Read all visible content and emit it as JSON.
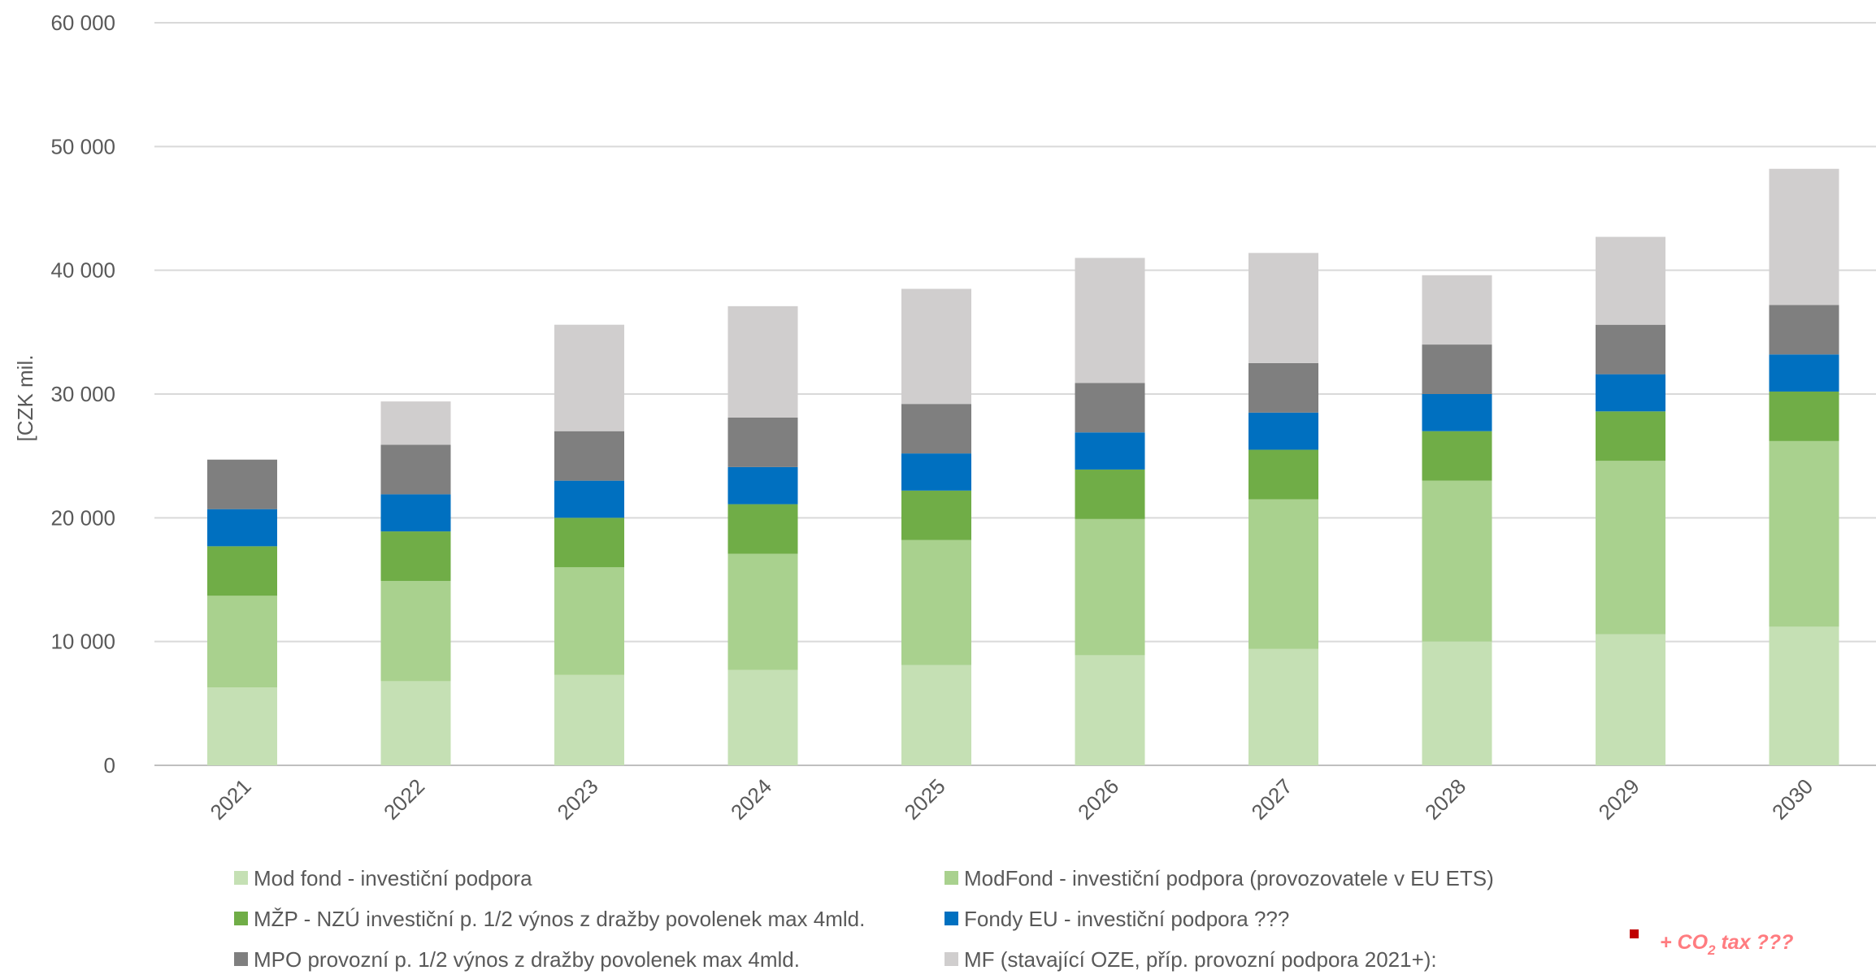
{
  "chart_data": {
    "type": "bar",
    "stacked": true,
    "ylabel": "[CZK mil.",
    "ylim": [
      0,
      60000
    ],
    "yticks": [
      0,
      10000,
      20000,
      30000,
      40000,
      50000,
      60000
    ],
    "ytick_labels": [
      "0",
      "10 000",
      "20 000",
      "30 000",
      "40 000",
      "50 000",
      "60 000"
    ],
    "grid": true,
    "legend_position": "bottom",
    "categories": [
      "2021",
      "2022",
      "2023",
      "2024",
      "2025",
      "2026",
      "2027",
      "2028",
      "2029",
      "2030"
    ],
    "series": [
      {
        "name": "Mod fond - investiční podpora",
        "color": "#c5e0b4",
        "values": [
          6300,
          6800,
          7300,
          7700,
          8100,
          8900,
          9400,
          10000,
          10600,
          11200
        ]
      },
      {
        "name": "ModFond - investiční podpora (provozovatele v EU ETS)",
        "color": "#a9d18e",
        "values": [
          7400,
          8100,
          8700,
          9400,
          10100,
          11000,
          12100,
          13000,
          14000,
          15000
        ]
      },
      {
        "name": "MŽP - NZÚ investiční p. 1/2 výnos z dražby povolenek max 4mld.",
        "color": "#70ad47",
        "values": [
          4000,
          4000,
          4000,
          4000,
          4000,
          4000,
          4000,
          4000,
          4000,
          4000
        ]
      },
      {
        "name": "Fondy EU - investiční podpora ???",
        "color": "#0070c0",
        "values": [
          3000,
          3000,
          3000,
          3000,
          3000,
          3000,
          3000,
          3000,
          3000,
          3000
        ]
      },
      {
        "name": "MPO provozní p. 1/2 výnos z dražby povolenek max 4mld.",
        "color": "#7f7f7f",
        "values": [
          4000,
          4000,
          4000,
          4000,
          4000,
          4000,
          4000,
          4000,
          4000,
          4000
        ]
      },
      {
        "name": "MF (stavající OZE, příp. provozní podpora 2021+):",
        "color": "#d0cece",
        "values": [
          0,
          3500,
          8600,
          9000,
          9300,
          10100,
          8900,
          5600,
          7100,
          11000
        ]
      }
    ],
    "annotation": {
      "text_prefix": "+ CO",
      "text_sub": "2",
      "text_suffix": " tax ???",
      "color": "#ff7c80",
      "marker_color": "#c00000"
    }
  }
}
